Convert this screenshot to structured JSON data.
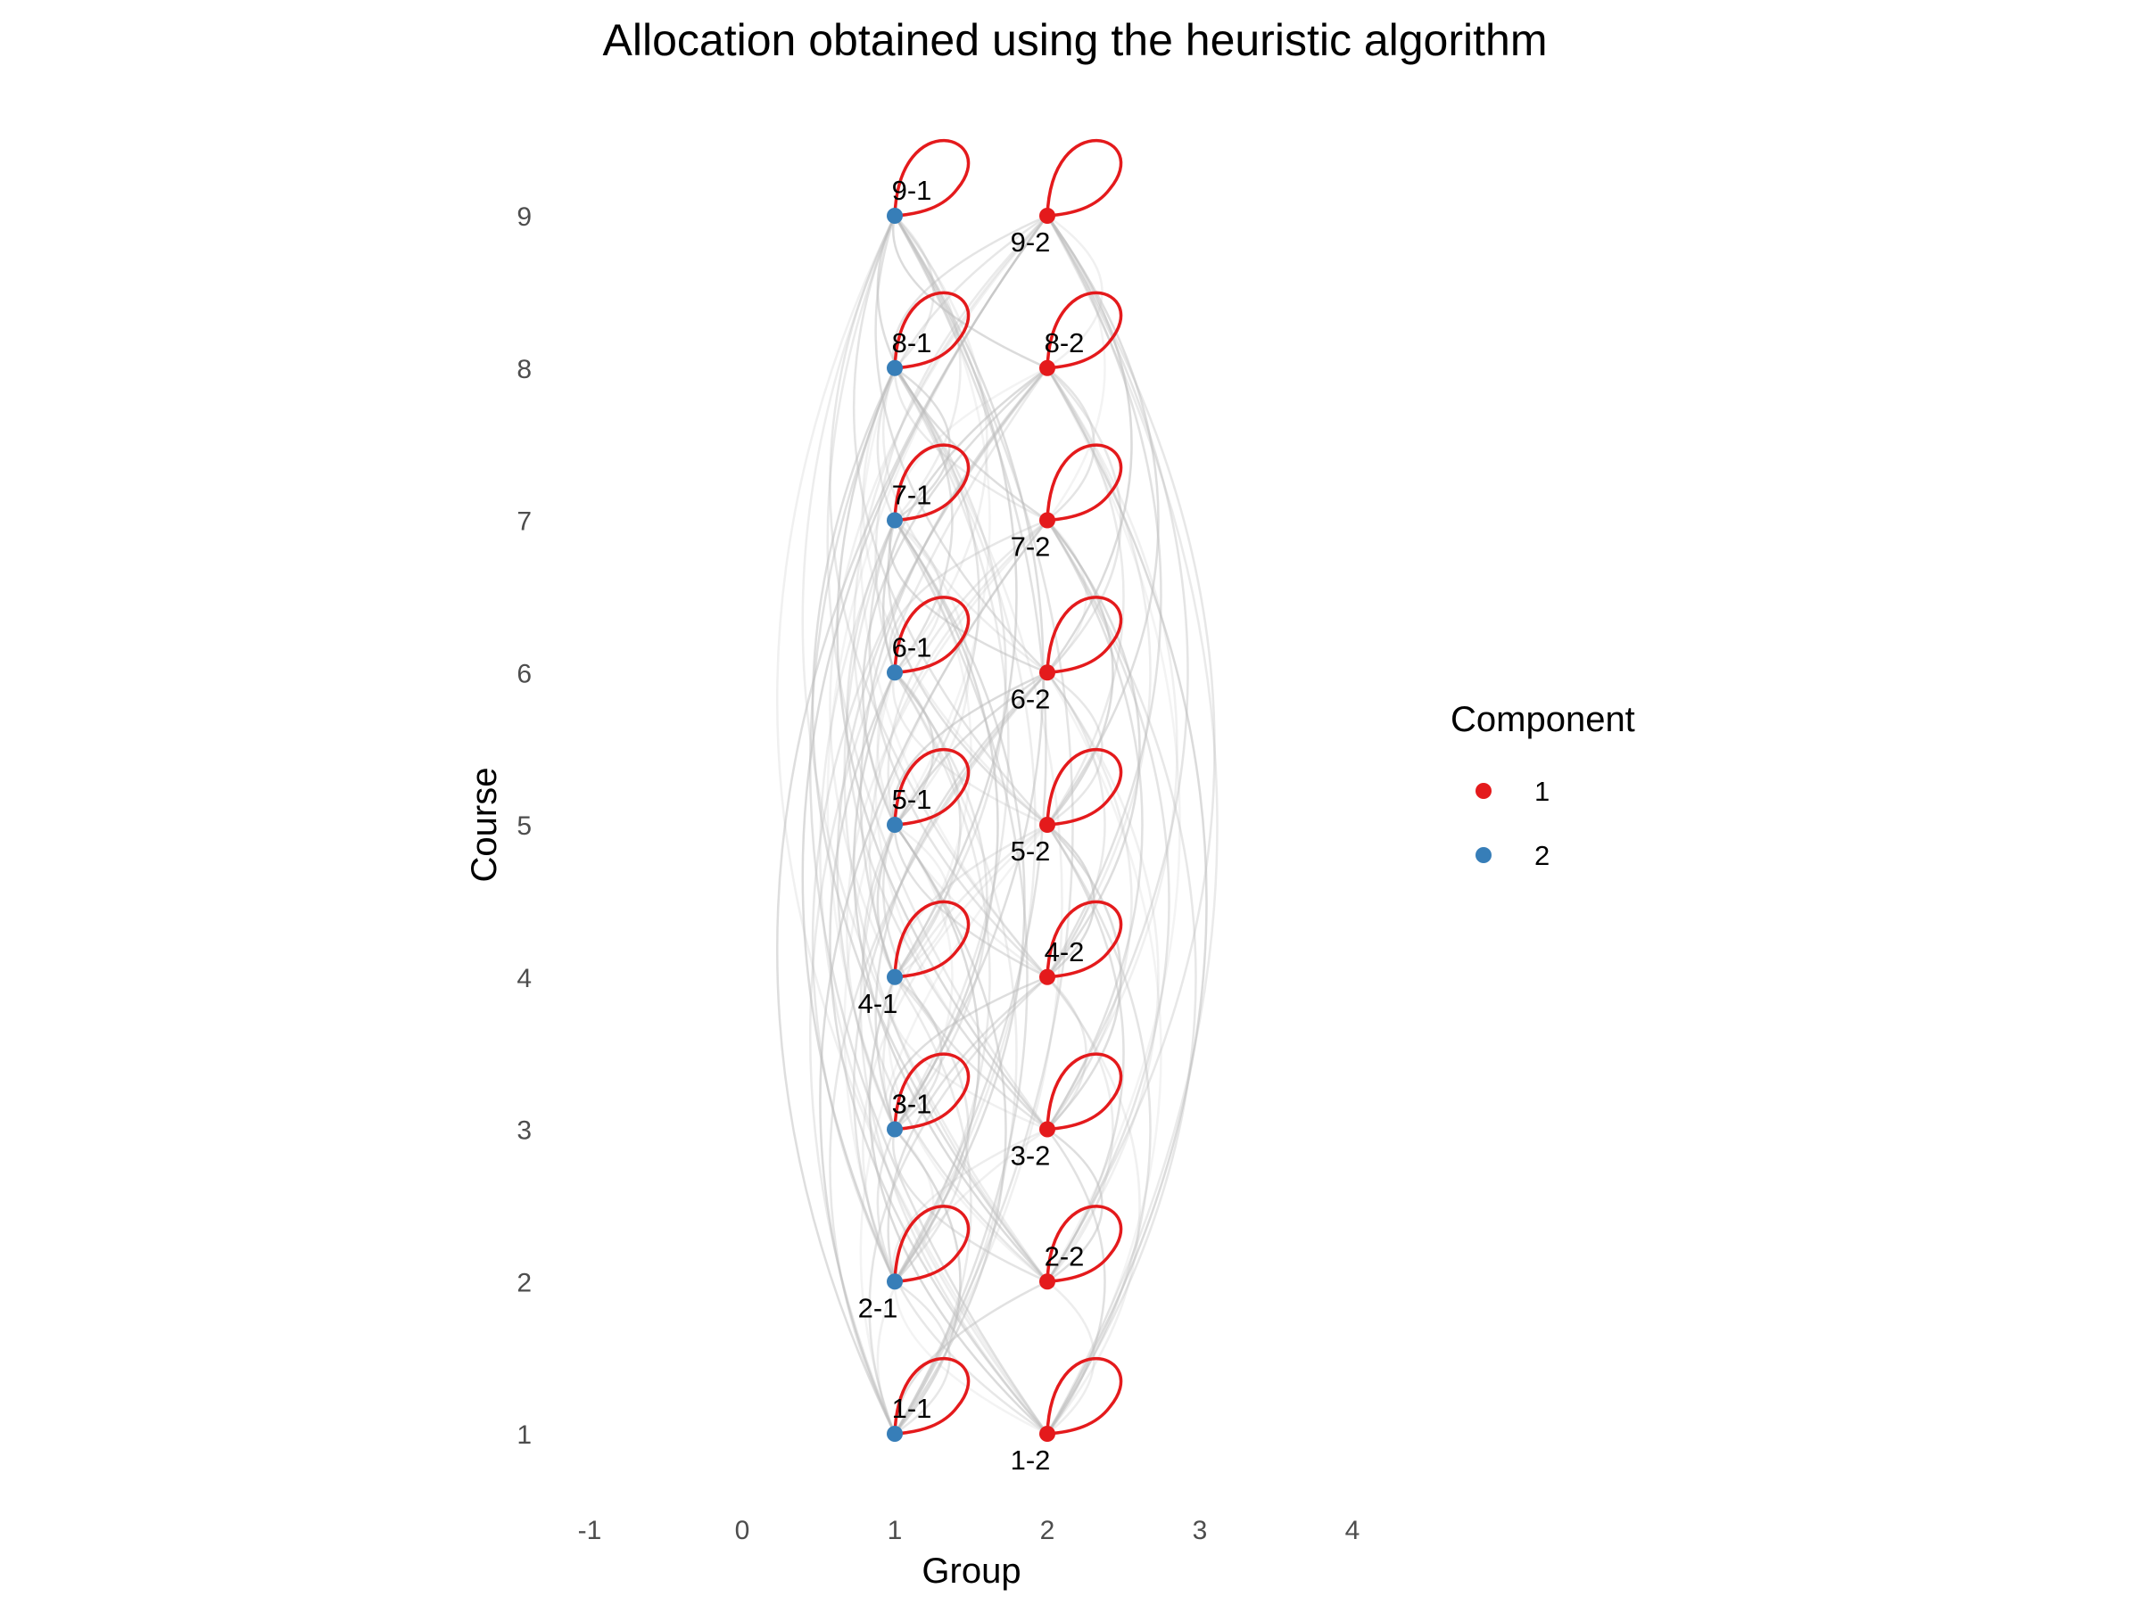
{
  "chart_data": {
    "type": "network",
    "title": "Allocation obtained using the heuristic algorithm",
    "xlabel": "Group",
    "ylabel": "Course",
    "xlim": [
      -1,
      4
    ],
    "ylim": [
      1,
      9
    ],
    "x_ticks": [
      "-1",
      "0",
      "1",
      "2",
      "3",
      "4"
    ],
    "y_ticks": [
      "1",
      "2",
      "3",
      "4",
      "5",
      "6",
      "7",
      "8",
      "9"
    ],
    "grid": false,
    "legend": {
      "title": "Component",
      "placement": "right",
      "entries": [
        {
          "label": "1",
          "color": "#E41A1C"
        },
        {
          "label": "2",
          "color": "#377EB8"
        }
      ]
    },
    "nodes": [
      {
        "label": "1-1",
        "group": 1,
        "course": 1,
        "component": 2
      },
      {
        "label": "1-2",
        "group": 2,
        "course": 1,
        "component": 1
      },
      {
        "label": "2-1",
        "group": 1,
        "course": 2,
        "component": 2
      },
      {
        "label": "2-2",
        "group": 2,
        "course": 2,
        "component": 1
      },
      {
        "label": "3-1",
        "group": 1,
        "course": 3,
        "component": 2
      },
      {
        "label": "3-2",
        "group": 2,
        "course": 3,
        "component": 1
      },
      {
        "label": "4-1",
        "group": 1,
        "course": 4,
        "component": 2
      },
      {
        "label": "4-2",
        "group": 2,
        "course": 4,
        "component": 1
      },
      {
        "label": "5-1",
        "group": 1,
        "course": 5,
        "component": 2
      },
      {
        "label": "5-2",
        "group": 2,
        "course": 5,
        "component": 1
      },
      {
        "label": "6-1",
        "group": 1,
        "course": 6,
        "component": 2
      },
      {
        "label": "6-2",
        "group": 2,
        "course": 6,
        "component": 1
      },
      {
        "label": "7-1",
        "group": 1,
        "course": 7,
        "component": 2
      },
      {
        "label": "7-2",
        "group": 2,
        "course": 7,
        "component": 1
      },
      {
        "label": "8-1",
        "group": 1,
        "course": 8,
        "component": 2
      },
      {
        "label": "8-2",
        "group": 2,
        "course": 8,
        "component": 1
      },
      {
        "label": "9-1",
        "group": 1,
        "course": 9,
        "component": 2
      },
      {
        "label": "9-2",
        "group": 2,
        "course": 9,
        "component": 1
      }
    ],
    "self_loop_color": "#E41A1C",
    "edge_color": "#BDBDBD"
  }
}
